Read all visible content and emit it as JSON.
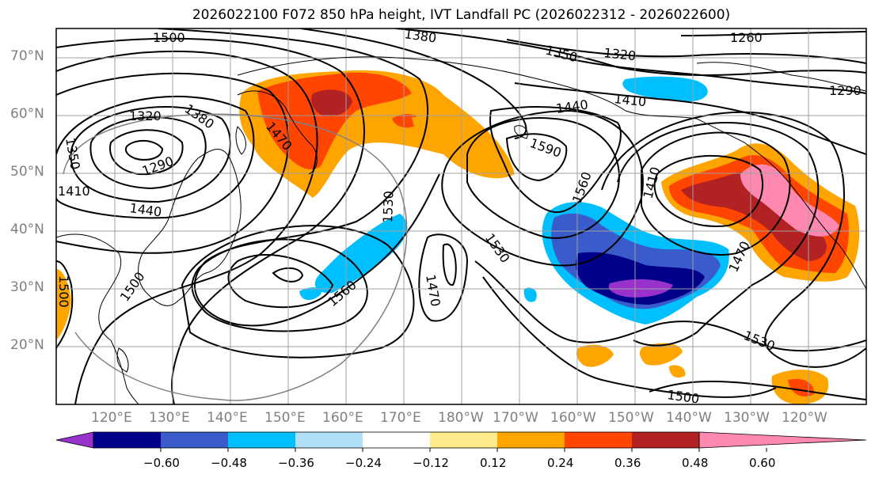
{
  "title": "2026022100 F072 850 hPa height, IVT Landfall PC (2026022312 - 2026022600)",
  "lat_labels": [
    "70°N",
    "60°N",
    "50°N",
    "40°N",
    "30°N",
    "20°N"
  ],
  "lon_labels": [
    "120°E",
    "130°E",
    "140°E",
    "150°E",
    "160°E",
    "170°E",
    "180°W",
    "170°W",
    "160°W",
    "150°W",
    "140°W",
    "130°W",
    "120°W"
  ],
  "contour_labels": [
    "1500",
    "1380",
    "1260",
    "1350",
    "1320",
    "1290",
    "1320",
    "1380",
    "1350",
    "1470",
    "1290",
    "1410",
    "1440",
    "1410",
    "1440",
    "1590",
    "1530",
    "1560",
    "1410",
    "1530",
    "1470",
    "1560",
    "1470",
    "1500",
    "1500",
    "1530",
    "1500"
  ],
  "colorbar": {
    "ticks": [
      "−0.60",
      "−0.48",
      "−0.36",
      "−0.24",
      "−0.12",
      "0.12",
      "0.24",
      "0.36",
      "0.48",
      "0.60"
    ],
    "colors": [
      "#9932cc",
      "#00008b",
      "#3a5ccb",
      "#00bfff",
      "#b0e0f8",
      "#ffffff",
      "#ffeb8a",
      "#ffa500",
      "#ff4500",
      "#b22222",
      "#ff88b0"
    ]
  }
}
